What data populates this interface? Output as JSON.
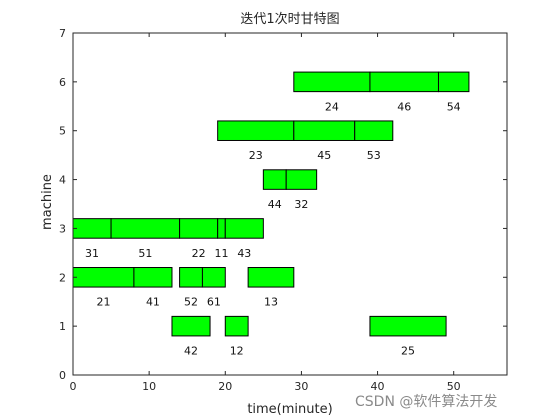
{
  "chart_data": {
    "type": "gantt",
    "title": "迭代1次时甘特图",
    "xlabel": "time(minute)",
    "ylabel": "machine",
    "xlim": [
      0,
      57
    ],
    "ylim": [
      0,
      7
    ],
    "xticks": [
      0,
      10,
      20,
      30,
      40,
      50
    ],
    "yticks": [
      0,
      1,
      2,
      3,
      4,
      5,
      6,
      7
    ],
    "grid": false,
    "bar_color": "#00ff00",
    "tasks": [
      {
        "machine": 6,
        "start": 29,
        "end": 39,
        "label": "24"
      },
      {
        "machine": 6,
        "start": 39,
        "end": 48,
        "label": "46"
      },
      {
        "machine": 6,
        "start": 48,
        "end": 52,
        "label": "54"
      },
      {
        "machine": 5,
        "start": 19,
        "end": 29,
        "label": "23"
      },
      {
        "machine": 5,
        "start": 29,
        "end": 37,
        "label": "45"
      },
      {
        "machine": 5,
        "start": 37,
        "end": 42,
        "label": "53"
      },
      {
        "machine": 4,
        "start": 25,
        "end": 28,
        "label": "44"
      },
      {
        "machine": 4,
        "start": 28,
        "end": 32,
        "label": "32"
      },
      {
        "machine": 3,
        "start": 0,
        "end": 5,
        "label": "31"
      },
      {
        "machine": 3,
        "start": 5,
        "end": 14,
        "label": "51"
      },
      {
        "machine": 3,
        "start": 14,
        "end": 19,
        "label": "22"
      },
      {
        "machine": 3,
        "start": 19,
        "end": 20,
        "label": "11"
      },
      {
        "machine": 3,
        "start": 20,
        "end": 25,
        "label": "43"
      },
      {
        "machine": 2,
        "start": 0,
        "end": 8,
        "label": "21"
      },
      {
        "machine": 2,
        "start": 8,
        "end": 13,
        "label": "41"
      },
      {
        "machine": 2,
        "start": 14,
        "end": 17,
        "label": "52"
      },
      {
        "machine": 2,
        "start": 17,
        "end": 20,
        "label": "61"
      },
      {
        "machine": 2,
        "start": 23,
        "end": 29,
        "label": "13"
      },
      {
        "machine": 1,
        "start": 13,
        "end": 18,
        "label": "42"
      },
      {
        "machine": 1,
        "start": 20,
        "end": 23,
        "label": "12"
      },
      {
        "machine": 1,
        "start": 39,
        "end": 49,
        "label": "25"
      }
    ]
  },
  "watermark": "CSDN @软件算法开发"
}
